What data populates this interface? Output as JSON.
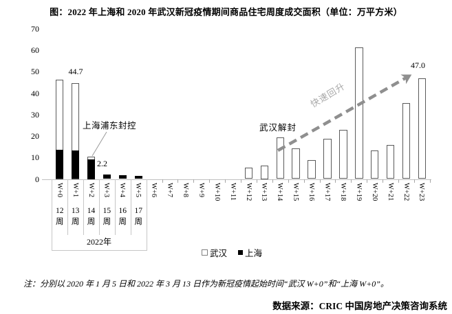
{
  "title": "图：2022 年上海和 2020 年武汉新冠疫情期间商品住宅周度成交面积（单位：万平方米）",
  "chart_data": {
    "type": "bar",
    "unit": "万平方米",
    "categories": [
      "W+0",
      "W+1",
      "W+2",
      "W+3",
      "W+4",
      "W+5",
      "W+6",
      "W+7",
      "W+8",
      "W+9",
      "W+10",
      "W+11",
      "W+12",
      "W+13",
      "W+14",
      "W+15",
      "W+16",
      "W+17",
      "W+18",
      "W+19",
      "W+20",
      "W+21",
      "W+22",
      "W+23"
    ],
    "series": [
      {
        "name": "武汉",
        "fill": "#ffffff",
        "outline": "#595959",
        "values": [
          46.3,
          44.7,
          10.3,
          0,
          0,
          0,
          0,
          0,
          0,
          0,
          0,
          0,
          5.4,
          6.4,
          19.5,
          14.3,
          8.9,
          18.6,
          22.8,
          61.5,
          13.4,
          16.0,
          35.5,
          47.0
        ]
      },
      {
        "name": "上海",
        "fill": "#000000",
        "values": [
          13.6,
          13.2,
          9.3,
          2.2,
          1.8,
          1.4,
          0,
          0,
          0,
          0,
          0,
          0,
          0,
          0,
          0,
          0,
          0,
          0,
          0,
          0,
          0,
          0,
          0,
          0
        ]
      }
    ],
    "ylim": [
      0,
      70
    ],
    "yticks": [
      0,
      10,
      20,
      30,
      40,
      50,
      60,
      70
    ],
    "grid": false,
    "legend_position": "bottom",
    "legend": [
      {
        "label": "武汉",
        "swatch": "white-outline"
      },
      {
        "label": "上海",
        "swatch": "black"
      }
    ],
    "sub_axis": {
      "week_labels": [
        "12周",
        "13周",
        "14周",
        "15周",
        "16周",
        "17周"
      ],
      "year_label": "2022年"
    },
    "annotations": {
      "wuhan_w1_value": "44.7",
      "shanghai_w3_value": "2.2",
      "wuhan_w23_value": "47.0",
      "pudong_lockdown": "上海浦东封控",
      "wuhan_reopen": "武汉解封",
      "rebound": "快速回升"
    }
  },
  "note": "注：分别以 2020 年 1 月 5 日和 2022 年 3 月 13 日作为新冠疫情起始时间“武汉 W+0”和“上海 W+0”。",
  "source": "数据来源：CRIC 中国房地产决策咨询系统"
}
